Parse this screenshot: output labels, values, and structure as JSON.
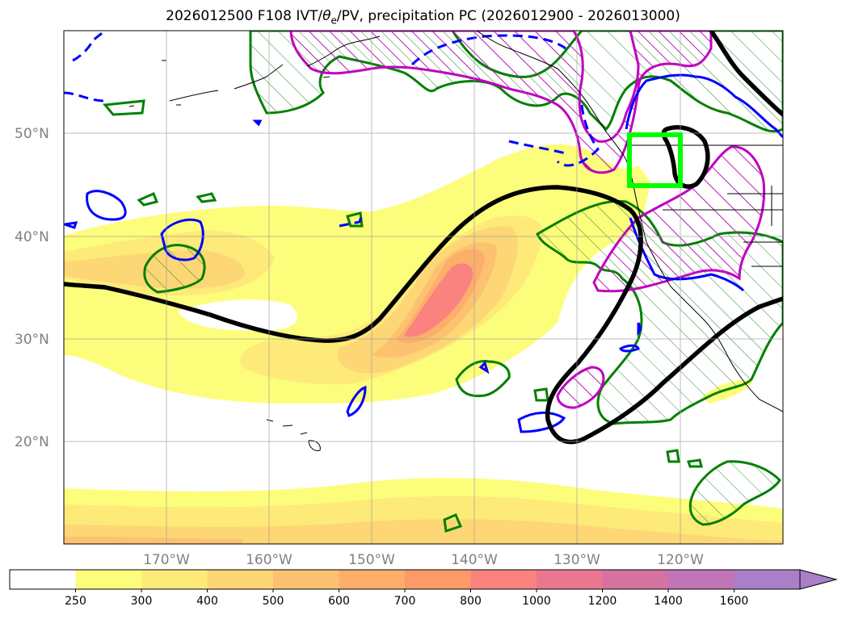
{
  "title": {
    "prefix": "2026012500 F108 IVT/",
    "theta": "θ",
    "sub": "e",
    "suffix": "/PV, precipitation PC (2026012900 - 2026013000)"
  },
  "map": {
    "projection": "PlateCarree",
    "lon_range": [
      -180,
      -110
    ],
    "lat_range": [
      10,
      60
    ],
    "gridlines": true,
    "lat_ticks": [
      "50°N",
      "40°N",
      "30°N",
      "20°N"
    ],
    "lon_ticks": [
      "170°W",
      "160°W",
      "150°W",
      "140°W",
      "130°W",
      "120°W"
    ],
    "highlight_box": {
      "color": "#00ff00",
      "lon": [
        -125,
        -120
      ],
      "lat": [
        45,
        50
      ]
    }
  },
  "colorbar": {
    "levels": [
      "250",
      "300",
      "400",
      "500",
      "600",
      "700",
      "800",
      "1000",
      "1200",
      "1400",
      "1600"
    ],
    "colors": [
      "#ffffff",
      "#fdfd7c",
      "#fdea79",
      "#fdd676",
      "#fdc26f",
      "#fdae6b",
      "#fd9a68",
      "#fa8380",
      "#ea7690",
      "#d6729f",
      "#c275b6",
      "#a980c8"
    ],
    "extend": "max"
  },
  "contours": {
    "pv_color": "#000000",
    "theta_e_color": "#0000ff",
    "precip_pc_color": "#008000",
    "precip_pc2_color": "#c000c0"
  }
}
